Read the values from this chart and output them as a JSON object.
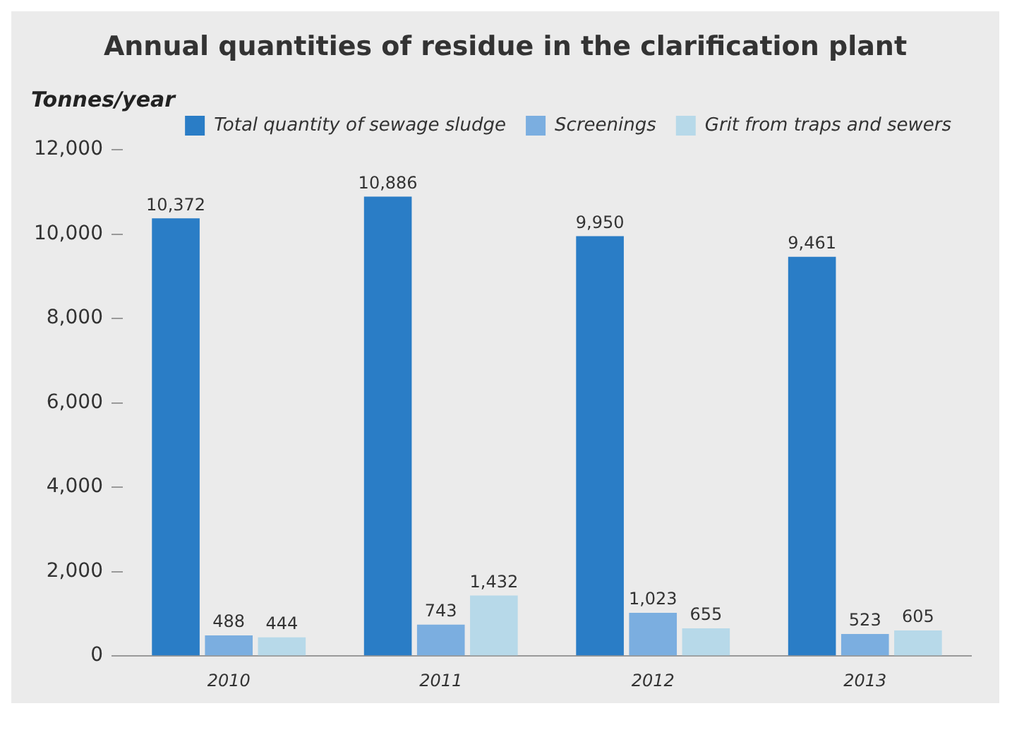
{
  "chart_data": {
    "type": "bar",
    "title": "Annual quantities of residue in the clarification plant",
    "ylabel": "Tonnes/year",
    "categories": [
      "2010",
      "2011",
      "2012",
      "2013"
    ],
    "series": [
      {
        "name": "Total quantity of sewage sludge",
        "color": "#2a7dc6",
        "values": [
          10372,
          10886,
          9950,
          9461
        ],
        "value_labels": [
          "10,372",
          "10,886",
          "9,950",
          "9,461"
        ]
      },
      {
        "name": "Screenings",
        "color": "#7baee0",
        "values": [
          488,
          743,
          1023,
          523
        ],
        "value_labels": [
          "488",
          "743",
          "1,023",
          "523"
        ]
      },
      {
        "name": "Grit from traps and sewers",
        "color": "#b7d9e9",
        "values": [
          444,
          1432,
          655,
          605
        ],
        "value_labels": [
          "444",
          "1,432",
          "655",
          "605"
        ]
      }
    ],
    "ylim": [
      0,
      12000
    ],
    "yticks": [
      {
        "value": 0,
        "label": "0"
      },
      {
        "value": 2000,
        "label": "2,000"
      },
      {
        "value": 4000,
        "label": "4,000"
      },
      {
        "value": 6000,
        "label": "6,000"
      },
      {
        "value": 8000,
        "label": "8,000"
      },
      {
        "value": 10000,
        "label": "10,000"
      },
      {
        "value": 12000,
        "label": "12,000"
      }
    ],
    "grid": false,
    "legend": "top right"
  }
}
